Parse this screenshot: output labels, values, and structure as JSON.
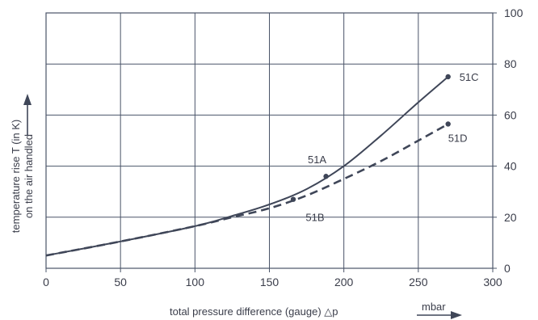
{
  "chart_data": {
    "type": "line",
    "xlabel": "total pressure difference (gauge)  △p",
    "x_unit": "mbar",
    "ylabel_line1": "temperature rise T (in K)",
    "ylabel_line2": "on the air handled",
    "xlim": [
      0,
      300
    ],
    "ylim": [
      0,
      100
    ],
    "x_ticks": [
      0,
      50,
      100,
      150,
      200,
      250,
      300
    ],
    "y_ticks": [
      0,
      20,
      40,
      60,
      80,
      100
    ],
    "y_axis_side": "right",
    "grid": true,
    "series": [
      {
        "name": "51C",
        "style": "solid",
        "x": [
          0,
          50,
          100,
          125,
          150,
          175,
          200,
          225,
          250,
          270
        ],
        "y": [
          5,
          10.5,
          16.5,
          20.5,
          25,
          31,
          40,
          52,
          65,
          75
        ]
      },
      {
        "name": "51D",
        "style": "dashed",
        "x": [
          0,
          50,
          100,
          125,
          150,
          175,
          200,
          225,
          250,
          270
        ],
        "y": [
          5,
          10.5,
          16.5,
          20,
          23.5,
          28.5,
          35,
          42,
          50,
          56.5
        ]
      }
    ],
    "markers": [
      {
        "label": "51A",
        "x": 188,
        "y": 36
      },
      {
        "label": "51B",
        "x": 166,
        "y": 27
      },
      {
        "label": "51C",
        "x": 270,
        "y": 75
      },
      {
        "label": "51D",
        "x": 270,
        "y": 56.5
      }
    ],
    "colors": {
      "line": "#3f4658",
      "grid": "#4a5468",
      "text": "#3a3d4a"
    }
  }
}
